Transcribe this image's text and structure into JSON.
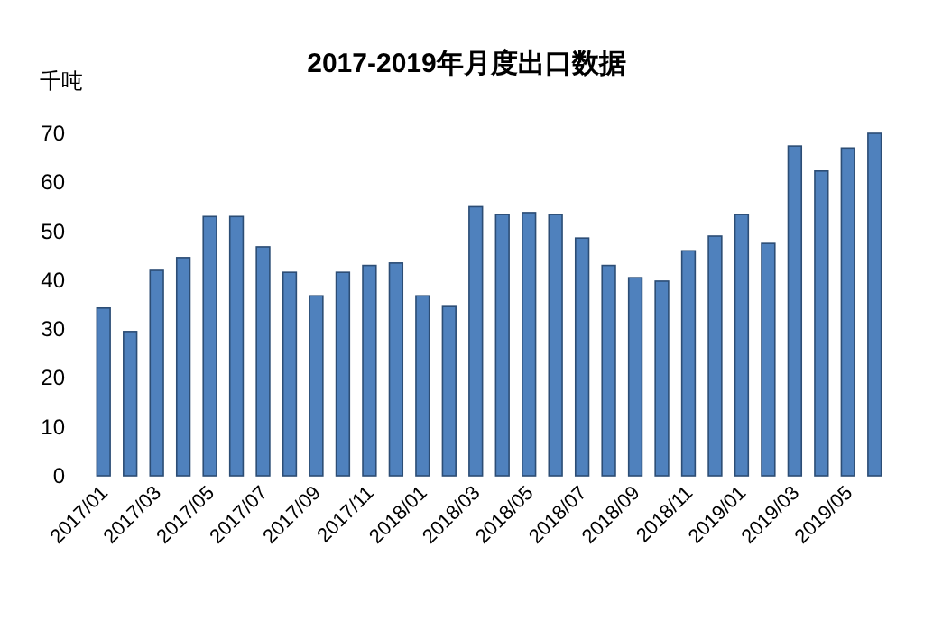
{
  "chart_data": {
    "type": "bar",
    "title": "2017-2019年月度出口数据",
    "ylabel": "千吨",
    "categories": [
      "2017/01",
      null,
      "2017/03",
      null,
      "2017/05",
      null,
      "2017/07",
      null,
      "2017/09",
      null,
      "2017/11",
      null,
      "2018/01",
      null,
      "2018/03",
      null,
      "2018/05",
      null,
      "2018/07",
      null,
      "2018/09",
      null,
      "2018/11",
      null,
      "2019/01",
      null,
      "2019/03",
      null,
      "2019/05",
      null
    ],
    "values": [
      34.3,
      29.5,
      42,
      44.6,
      53,
      53,
      46.8,
      41.6,
      36.8,
      41.6,
      43,
      43.5,
      36.8,
      34.6,
      55,
      53.4,
      53.8,
      53.4,
      48.6,
      43,
      40.5,
      39.8,
      46,
      49,
      53.4,
      47.5,
      67.4,
      62.3,
      67,
      70
    ],
    "color": "#4f81bd",
    "ylim": [
      0,
      70
    ],
    "yticks": [
      0,
      10,
      20,
      30,
      40,
      50,
      60,
      70
    ],
    "grid": false
  }
}
